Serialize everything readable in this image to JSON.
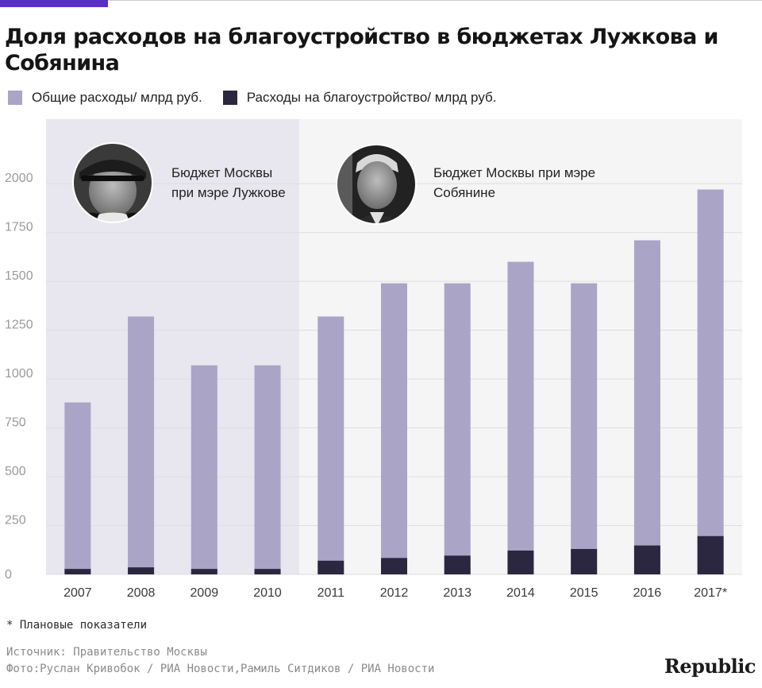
{
  "title": "Доля расходов на благоустройство в бюджетах Лужкова и Собянина",
  "legend": [
    {
      "label": "Общие расходы/ млрд руб.",
      "color": "#aaa4c6"
    },
    {
      "label": "Расходы на благоустройство/ млрд руб.",
      "color": "#2b2740"
    }
  ],
  "periods": [
    {
      "label": "Бюджет Москвы при мэре Лужкове",
      "line1": "Бюджет Москвы",
      "line2": "при мэре Лужкове",
      "background": "#e8e6ee",
      "portrait_icon": "portrait-luzhkov-icon"
    },
    {
      "label": "Бюджет Москвы при мэре Собянине",
      "line1": "Бюджет Москвы при мэре",
      "line2": "Собянине",
      "background": "#f5f5f5",
      "portrait_icon": "portrait-sobyanin-icon"
    }
  ],
  "chart_data": {
    "type": "bar",
    "categories": [
      "2007",
      "2008",
      "2009",
      "2010",
      "2011",
      "2012",
      "2013",
      "2014",
      "2015",
      "2016",
      "2017*"
    ],
    "series": [
      {
        "name": "Общие расходы/ млрд руб.",
        "values": [
          880,
          1320,
          1070,
          1070,
          1320,
          1490,
          1490,
          1600,
          1490,
          1710,
          1970
        ]
      },
      {
        "name": "Расходы на благоустройство/ млрд руб.",
        "values": [
          28,
          36,
          28,
          28,
          70,
          84,
          96,
          122,
          130,
          148,
          196
        ]
      }
    ],
    "yticks": [
      0,
      250,
      500,
      750,
      1000,
      1250,
      1500,
      1750,
      2000
    ],
    "ylim": [
      0,
      2330
    ],
    "grid": true,
    "legend_position": "top-left",
    "colors": {
      "total": "#aaa4c6",
      "improvement": "#2b2740",
      "grid": "#dedde3"
    }
  },
  "footnote": "* Плановые показатели",
  "source_line": "Источник: Правительство Москвы",
  "photo_line": "Фото:Руслан Кривобок / РИА Новости,Рамиль Ситдиков / РИА Новости",
  "logo": "Republic",
  "accent_color": "#5a2fc8"
}
